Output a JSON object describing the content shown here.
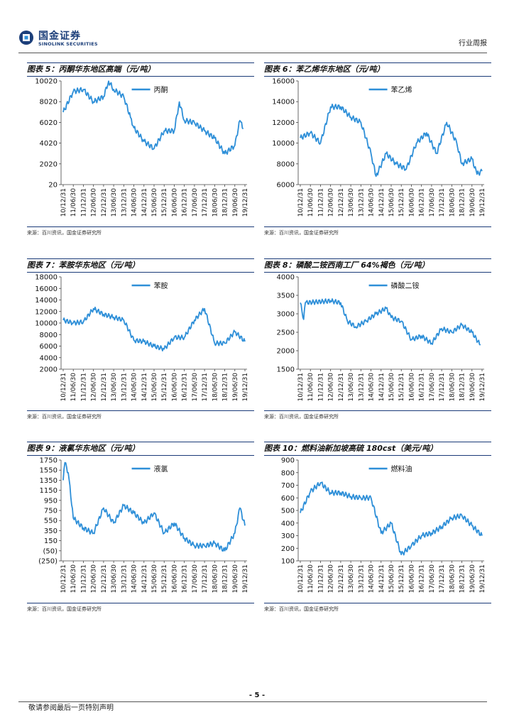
{
  "header": {
    "logo_cn": "国金证券",
    "logo_en": "SINOLINK SECURITIES",
    "right_label": "行业周报"
  },
  "footer": {
    "page": "- 5 -",
    "note": "敬请参阅最后一页特别声明"
  },
  "colors": {
    "series": "#2e8fd8",
    "accent": "#1a3a78",
    "negative": "#c00000"
  },
  "panels": [
    {
      "title": "图表 5：丙酮华东地区高端（元/吨）",
      "source": "来源：百川资讯，国金证券研究所"
    },
    {
      "title": "图表 6：苯乙烯华东地区（元/吨）",
      "source": "来源：百川资讯，国金证券研究所"
    },
    {
      "title": "图表 7：苯胺华东地区（元/吨）",
      "source": "来源：百川资讯，国金证券研究所"
    },
    {
      "title": "图表 8：磷酸二铵西南工厂 64%褐色（元/吨）",
      "source": "来源：百川资讯，国金证券研究所"
    },
    {
      "title": "图表 9：液氯华东地区（元/吨）",
      "source": "来源：百川资讯，国金证券研究所"
    },
    {
      "title": "图表 10：燃料油新加坡高硫 180cst（美元/吨）",
      "source": "来源：百川资讯，国金证券研究所"
    }
  ],
  "chart_data": [
    {
      "type": "line",
      "series": [
        {
          "name": "丙酮"
        }
      ],
      "ylim": [
        20,
        10020
      ],
      "yticks": [
        "10020",
        "8020",
        "6020",
        "4020",
        "2020",
        "20"
      ],
      "xticks": [
        "10/12/31",
        "11/06/30",
        "11/12/31",
        "12/06/30",
        "12/12/31",
        "13/06/30",
        "13/12/31",
        "14/06/30",
        "14/12/31",
        "15/06/30",
        "15/12/31",
        "16/06/30",
        "16/12/31",
        "17/06/30",
        "17/12/31",
        "18/06/30",
        "18/12/31",
        "19/06/30",
        "19/12/31"
      ],
      "x": [
        "2010-12",
        "2011-06",
        "2011-12",
        "2012-06",
        "2012-12",
        "2013-03",
        "2013-06",
        "2013-12",
        "2014-04",
        "2014-06",
        "2014-12",
        "2015-06",
        "2015-12",
        "2016-06",
        "2016-09",
        "2016-12",
        "2017-06",
        "2017-12",
        "2018-06",
        "2018-12",
        "2019-06",
        "2019-09",
        "2019-11"
      ],
      "y": [
        7000,
        9000,
        9200,
        8000,
        8500,
        10000,
        9200,
        8500,
        6500,
        5500,
        4200,
        3500,
        5200,
        5200,
        8000,
        6200,
        6000,
        5200,
        4500,
        3000,
        3800,
        6200,
        5400
      ]
    },
    {
      "type": "line",
      "series": [
        {
          "name": "苯乙烯"
        }
      ],
      "ylim": [
        6000,
        16000
      ],
      "yticks": [
        "16000",
        "14000",
        "12000",
        "10000",
        "8000",
        "6000"
      ],
      "xticks": [
        "10/12/31",
        "11/06/30",
        "11/12/31",
        "12/06/30",
        "12/12/31",
        "13/06/30",
        "13/12/31",
        "14/06/30",
        "14/12/31",
        "15/06/30",
        "15/12/31",
        "16/06/30",
        "16/12/31",
        "17/06/30",
        "17/12/31",
        "18/06/30",
        "18/12/31",
        "19/06/30",
        "19/12/31"
      ],
      "x": [
        "2010-12",
        "2011-06",
        "2011-12",
        "2012-06",
        "2012-12",
        "2013-06",
        "2013-12",
        "2014-06",
        "2014-09",
        "2015-03",
        "2015-09",
        "2016-03",
        "2016-09",
        "2017-03",
        "2017-09",
        "2018-03",
        "2018-09",
        "2018-12",
        "2019-06",
        "2019-09",
        "2019-12"
      ],
      "y": [
        10500,
        11000,
        10000,
        13500,
        13500,
        12500,
        12000,
        9000,
        6800,
        9000,
        8000,
        7500,
        10000,
        11000,
        9000,
        12000,
        10000,
        8000,
        8500,
        7000,
        7300
      ]
    },
    {
      "type": "line",
      "series": [
        {
          "name": "苯胺"
        }
      ],
      "ylim": [
        2000,
        18000
      ],
      "yticks": [
        "18000",
        "16000",
        "14000",
        "12000",
        "10000",
        "8000",
        "6000",
        "4000",
        "2000"
      ],
      "xticks": [
        "10/12/31",
        "11/06/30",
        "11/12/31",
        "12/06/30",
        "12/12/31",
        "13/06/30",
        "13/12/31",
        "14/06/30",
        "14/12/31",
        "15/06/30",
        "15/12/31",
        "16/06/30",
        "16/12/31",
        "17/06/30",
        "17/12/31",
        "18/06/30",
        "18/12/31",
        "19/06/30",
        "19/12/31"
      ],
      "x": [
        "2010-12",
        "2011-06",
        "2011-12",
        "2012-06",
        "2012-12",
        "2013-06",
        "2013-12",
        "2014-06",
        "2014-12",
        "2015-06",
        "2015-12",
        "2016-06",
        "2016-12",
        "2017-06",
        "2017-12",
        "2018-06",
        "2018-12",
        "2019-06",
        "2019-12"
      ],
      "y": [
        10500,
        10000,
        10200,
        12500,
        11500,
        11000,
        10500,
        7000,
        6800,
        6000,
        5500,
        7500,
        7500,
        10500,
        12500,
        6500,
        6500,
        8500,
        6800
      ]
    },
    {
      "type": "line",
      "series": [
        {
          "name": "磷酸二铵"
        }
      ],
      "ylim": [
        1500,
        4000
      ],
      "yticks": [
        "4000",
        "3500",
        "3000",
        "2500",
        "2000",
        "1500"
      ],
      "xticks": [
        "10/12/31",
        "11/06/30",
        "11/12/31",
        "12/06/30",
        "12/12/31",
        "13/06/30",
        "13/12/31",
        "14/06/30",
        "14/12/31",
        "15/06/30",
        "15/12/31",
        "16/06/30",
        "16/12/31",
        "17/06/30",
        "17/12/31",
        "18/06/30",
        "18/12/31",
        "19/06/30",
        "19/12/31"
      ],
      "x": [
        "2010-12",
        "2011-02",
        "2011-03",
        "2012-06",
        "2012-12",
        "2013-04",
        "2013-09",
        "2014-03",
        "2014-09",
        "2015-03",
        "2015-06",
        "2015-12",
        "2016-06",
        "2016-12",
        "2017-06",
        "2017-12",
        "2018-06",
        "2018-12",
        "2019-06",
        "2019-11"
      ],
      "y": [
        3300,
        2850,
        3300,
        3350,
        3300,
        2800,
        2650,
        2800,
        3000,
        3150,
        2900,
        2800,
        2300,
        2400,
        2200,
        2600,
        2500,
        2700,
        2500,
        2150
      ]
    },
    {
      "type": "line",
      "series": [
        {
          "name": "液氯"
        }
      ],
      "ylim": [
        -250,
        1750
      ],
      "yticks": [
        "1750",
        "1550",
        "1350",
        "1150",
        "950",
        "750",
        "550",
        "350",
        "150",
        "(50)",
        "(250)"
      ],
      "xticks": [
        "10/12/31",
        "11/06/30",
        "11/12/31",
        "12/06/30",
        "12/12/31",
        "13/06/30",
        "13/12/31",
        "14/06/30",
        "14/12/31",
        "15/06/30",
        "15/12/31",
        "16/06/30",
        "16/12/31",
        "17/06/30",
        "17/12/31",
        "18/06/30",
        "18/12/31",
        "19/06/30",
        "19/12/31"
      ],
      "x": [
        "2010-12",
        "2011-01",
        "2011-03",
        "2011-06",
        "2011-12",
        "2012-06",
        "2012-12",
        "2013-06",
        "2013-12",
        "2014-06",
        "2014-12",
        "2015-06",
        "2015-12",
        "2016-06",
        "2016-12",
        "2017-06",
        "2017-12",
        "2018-06",
        "2018-12",
        "2019-06",
        "2019-09",
        "2019-12"
      ],
      "y": [
        1350,
        1700,
        1500,
        600,
        400,
        300,
        800,
        500,
        850,
        700,
        500,
        700,
        300,
        500,
        200,
        50,
        50,
        100,
        -50,
        300,
        800,
        450
      ]
    },
    {
      "type": "line",
      "series": [
        {
          "name": "燃料油"
        }
      ],
      "ylim": [
        100,
        900
      ],
      "yticks": [
        "900",
        "800",
        "700",
        "600",
        "500",
        "400",
        "300",
        "200",
        "100"
      ],
      "xticks": [
        "10/12/31",
        "11/06/30",
        "11/12/31",
        "12/06/30",
        "12/12/31",
        "13/06/30",
        "13/12/31",
        "14/06/30",
        "14/12/31",
        "15/06/30",
        "15/12/31",
        "16/06/30",
        "16/12/31",
        "17/06/30",
        "17/12/31",
        "18/06/30",
        "18/12/31",
        "19/06/30",
        "19/12/31"
      ],
      "x": [
        "2010-12",
        "2011-06",
        "2011-12",
        "2012-06",
        "2012-12",
        "2013-06",
        "2013-12",
        "2014-06",
        "2014-12",
        "2015-06",
        "2015-12",
        "2016-06",
        "2016-12",
        "2017-06",
        "2017-12",
        "2018-06",
        "2018-12",
        "2019-06",
        "2019-12"
      ],
      "y": [
        480,
        650,
        720,
        640,
        640,
        610,
        600,
        600,
        320,
        400,
        150,
        220,
        300,
        320,
        370,
        440,
        460,
        380,
        300
      ]
    }
  ]
}
